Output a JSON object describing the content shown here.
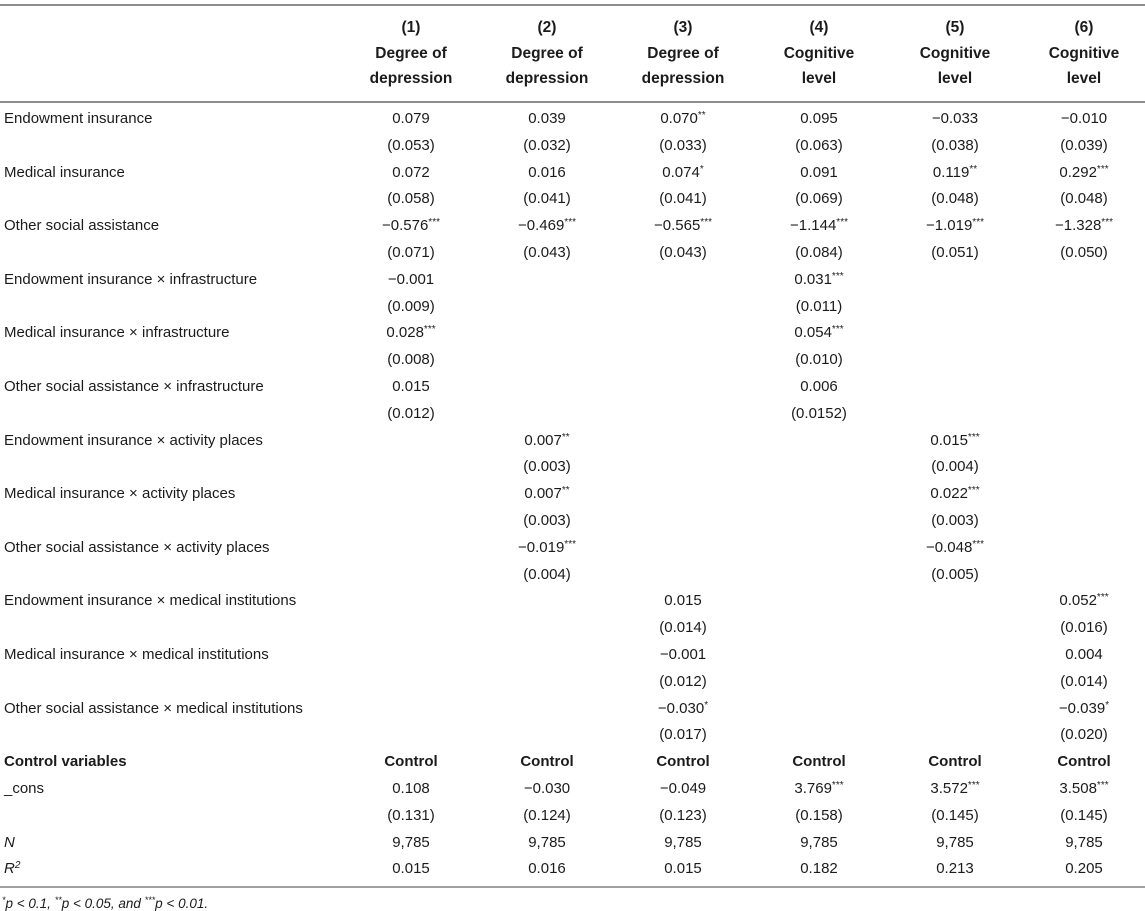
{
  "table": {
    "columns": [
      {
        "num": "(1)",
        "dv1": "Degree of",
        "dv2": "depression"
      },
      {
        "num": "(2)",
        "dv1": "Degree of",
        "dv2": "depression"
      },
      {
        "num": "(3)",
        "dv1": "Degree of",
        "dv2": "depression"
      },
      {
        "num": "(4)",
        "dv1": "Cognitive",
        "dv2": "level"
      },
      {
        "num": "(5)",
        "dv1": "Cognitive",
        "dv2": "level"
      },
      {
        "num": "(6)",
        "dv1": "Cognitive",
        "dv2": "level"
      }
    ],
    "rows": [
      {
        "label": "Endowment insurance",
        "coefs": [
          "0.079",
          "0.039",
          "0.070**",
          "0.095",
          "−0.033",
          "−0.010"
        ],
        "ses": [
          "(0.053)",
          "(0.032)",
          "(0.033)",
          "(0.063)",
          "(0.038)",
          "(0.039)"
        ]
      },
      {
        "label": "Medical insurance",
        "coefs": [
          "0.072",
          "0.016",
          "0.074*",
          "0.091",
          "0.119**",
          "0.292***"
        ],
        "ses": [
          "(0.058)",
          "(0.041)",
          "(0.041)",
          "(0.069)",
          "(0.048)",
          "(0.048)"
        ]
      },
      {
        "label": "Other social assistance",
        "coefs": [
          "−0.576***",
          "−0.469***",
          "−0.565***",
          "−1.144***",
          "−1.019***",
          "−1.328***"
        ],
        "ses": [
          "(0.071)",
          "(0.043)",
          "(0.043)",
          "(0.084)",
          "(0.051)",
          "(0.050)"
        ]
      },
      {
        "label": "Endowment insurance × infrastructure",
        "coefs": [
          "−0.001",
          "",
          "",
          "0.031***",
          "",
          ""
        ],
        "ses": [
          "(0.009)",
          "",
          "",
          "(0.011)",
          "",
          ""
        ]
      },
      {
        "label": "Medical insurance × infrastructure",
        "coefs": [
          "0.028***",
          "",
          "",
          "0.054***",
          "",
          ""
        ],
        "ses": [
          "(0.008)",
          "",
          "",
          "(0.010)",
          "",
          ""
        ]
      },
      {
        "label": "Other social assistance × infrastructure",
        "coefs": [
          "0.015",
          "",
          "",
          "0.006",
          "",
          ""
        ],
        "ses": [
          "(0.012)",
          "",
          "",
          "(0.0152)",
          "",
          ""
        ]
      },
      {
        "label": "Endowment insurance × activity places",
        "coefs": [
          "",
          "0.007**",
          "",
          "",
          "0.015***",
          ""
        ],
        "ses": [
          "",
          "(0.003)",
          "",
          "",
          "(0.004)",
          ""
        ]
      },
      {
        "label": "Medical insurance × activity places",
        "coefs": [
          "",
          "0.007**",
          "",
          "",
          "0.022***",
          ""
        ],
        "ses": [
          "",
          "(0.003)",
          "",
          "",
          "(0.003)",
          ""
        ]
      },
      {
        "label": "Other social assistance × activity places",
        "coefs": [
          "",
          "−0.019***",
          "",
          "",
          "−0.048***",
          ""
        ],
        "ses": [
          "",
          "(0.004)",
          "",
          "",
          "(0.005)",
          ""
        ]
      },
      {
        "label": "Endowment insurance × medical institutions",
        "coefs": [
          "",
          "",
          "0.015",
          "",
          "",
          "0.052***"
        ],
        "ses": [
          "",
          "",
          "(0.014)",
          "",
          "",
          "(0.016)"
        ]
      },
      {
        "label": "Medical insurance × medical institutions",
        "coefs": [
          "",
          "",
          "−0.001",
          "",
          "",
          "0.004"
        ],
        "ses": [
          "",
          "",
          "(0.012)",
          "",
          "",
          "(0.014)"
        ]
      },
      {
        "label": "Other social assistance × medical institutions",
        "coefs": [
          "",
          "",
          "−0.030*",
          "",
          "",
          "−0.039*"
        ],
        "ses": [
          "",
          "",
          "(0.017)",
          "",
          "",
          "(0.020)"
        ]
      },
      {
        "label": "Control variables",
        "bold": true,
        "coefs": [
          "Control",
          "Control",
          "Control",
          "Control",
          "Control",
          "Control"
        ]
      },
      {
        "label": "_cons",
        "coefs": [
          "0.108",
          "−0.030",
          "−0.049",
          "3.769***",
          "3.572***",
          "3.508***"
        ],
        "ses": [
          "(0.131)",
          "(0.124)",
          "(0.123)",
          "(0.158)",
          "(0.145)",
          "(0.145)"
        ]
      },
      {
        "label": "N",
        "italic": true,
        "coefs": [
          "9,785",
          "9,785",
          "9,785",
          "9,785",
          "9,785",
          "9,785"
        ]
      },
      {
        "label": "R",
        "label_sup": "2",
        "italic": true,
        "coefs": [
          "0.015",
          "0.016",
          "0.015",
          "0.182",
          "0.213",
          "0.205"
        ]
      }
    ],
    "footnote_segments": [
      {
        "stars": "*",
        "text": "p < 0.1, "
      },
      {
        "stars": "**",
        "text": "p < 0.05, and "
      },
      {
        "stars": "***",
        "text": "p < 0.01."
      }
    ]
  }
}
